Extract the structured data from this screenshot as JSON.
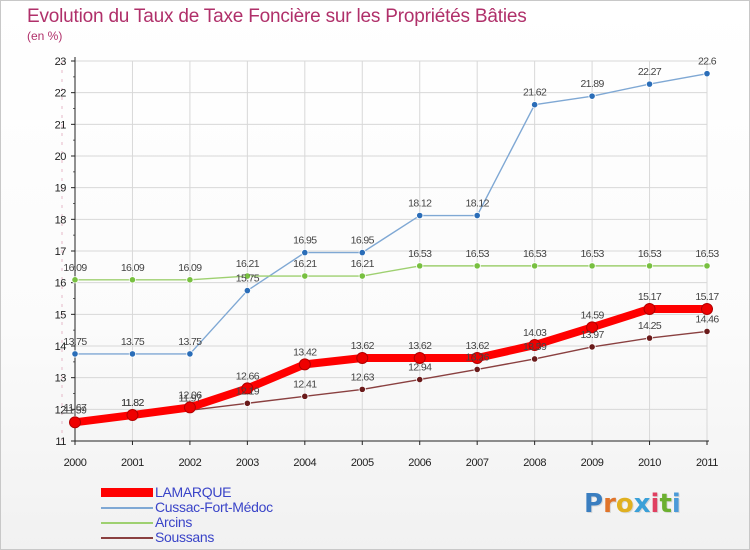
{
  "title": "Evolution du Taux de Taxe Foncière sur les Propriétés Bâties",
  "unit_label": "(en %)",
  "logo": {
    "text": "Proxiti",
    "letter_colors": [
      "#3a7ec0",
      "#e0742a",
      "#e0b020",
      "#3aa0d8",
      "#e04060",
      "#6cb030",
      "#4a9ad8"
    ]
  },
  "colors": {
    "title": "#b0306a",
    "legend_text": "#3a44c8",
    "grid": "#d8d8d8"
  },
  "chart_data": {
    "type": "line",
    "x": [
      2000,
      2001,
      2002,
      2003,
      2004,
      2005,
      2006,
      2007,
      2008,
      2009,
      2010,
      2011
    ],
    "xlabel": "",
    "ylabel": "(en %)",
    "ylim": [
      11,
      23
    ],
    "yticks": [
      11,
      12,
      13,
      14,
      15,
      16,
      17,
      18,
      19,
      20,
      21,
      22,
      23
    ],
    "grid": true,
    "legend_position": "bottom-left",
    "series": [
      {
        "name": "LAMARQUE",
        "color": "#ee0000",
        "line_color": "#ff0000",
        "thick": true,
        "values": [
          11.59,
          11.82,
          12.06,
          12.66,
          13.42,
          13.62,
          13.62,
          13.62,
          14.03,
          14.59,
          15.17,
          15.17
        ],
        "labels": [
          "11.59",
          "11.82",
          "12.06",
          "12.66",
          "13.42",
          "13.62",
          "13.62",
          "13.62",
          "14.03",
          "14.59",
          "15.17",
          "15.17"
        ]
      },
      {
        "name": "Cussac-Fort-Médoc",
        "color": "#2a6db8",
        "line_color": "#7fa8d4",
        "thick": false,
        "values": [
          13.75,
          13.75,
          13.75,
          15.75,
          16.95,
          16.95,
          18.12,
          18.12,
          21.62,
          21.89,
          22.27,
          22.6
        ],
        "labels": [
          "13.75",
          "13.75",
          "13.75",
          "15.75",
          "16.95",
          "16.95",
          "18.12",
          "18.12",
          "21.62",
          "21.89",
          "22.27",
          "22.6"
        ]
      },
      {
        "name": "Arcins",
        "color": "#78c040",
        "line_color": "#9ed070",
        "thick": false,
        "values": [
          16.09,
          16.09,
          16.09,
          16.21,
          16.21,
          16.21,
          16.53,
          16.53,
          16.53,
          16.53,
          16.53,
          16.53
        ],
        "labels": [
          "16.09",
          "16.09",
          "16.09",
          "16.21",
          "16.21",
          "16.21",
          "16.53",
          "16.53",
          "16.53",
          "16.53",
          "16.53",
          "16.53"
        ]
      },
      {
        "name": "Soussans",
        "color": "#6a1a1a",
        "line_color": "#8a4040",
        "thick": false,
        "values": [
          11.67,
          11.82,
          11.97,
          12.19,
          12.41,
          12.63,
          12.94,
          13.26,
          13.59,
          13.97,
          14.25,
          14.46
        ],
        "labels": [
          "11.67",
          "11.82",
          "11.97",
          "12.19",
          "12.41",
          "12.63",
          "12.94",
          "13.26",
          "13.59",
          "13.97",
          "14.25",
          "14.46"
        ]
      }
    ]
  }
}
